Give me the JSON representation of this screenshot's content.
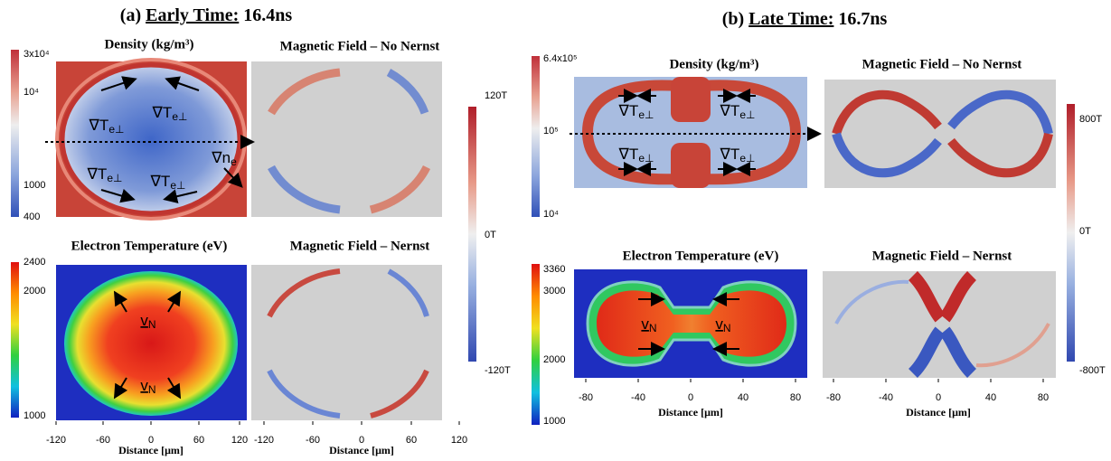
{
  "panel_a": {
    "label": "(a)",
    "heading": "Early Time:",
    "time": "16.4ns",
    "density": {
      "title": "Density (kg/m³)",
      "colorbar": [
        "3x10⁴",
        "10⁴",
        "1000",
        "400"
      ],
      "annotations": [
        {
          "base": "∇T",
          "sub": "e⊥"
        },
        {
          "base": "∇T",
          "sub": "e⊥"
        },
        {
          "base": "∇T",
          "sub": "e⊥"
        },
        {
          "base": "∇T",
          "sub": "e⊥"
        },
        {
          "base": "∇n",
          "sub": "e"
        }
      ]
    },
    "field_no_nernst": {
      "title": "Magnetic Field – No Nernst"
    },
    "field_colorbar": [
      "120T",
      "0T",
      "-120T"
    ],
    "temperature": {
      "title": "Electron Temperature (eV)",
      "colorbar": [
        "2400",
        "2000",
        "1000"
      ],
      "annotations": [
        {
          "base": "v",
          "sub": "N"
        },
        {
          "base": "v",
          "sub": "N"
        }
      ]
    },
    "field_nernst": {
      "title": "Magnetic Field – Nernst"
    },
    "x_ticks": [
      "-120",
      "-60",
      "0",
      "60",
      "120"
    ],
    "x_label": "Distance [μm]"
  },
  "panel_b": {
    "label": "(b)",
    "heading": "Late Time:",
    "time": "16.7ns",
    "density": {
      "title": "Density (kg/m³)",
      "colorbar": [
        "6.4x10⁵",
        "10⁵",
        "10⁴"
      ],
      "annotations": [
        {
          "base": "∇T",
          "sub": "e⊥"
        },
        {
          "base": "∇T",
          "sub": "e⊥"
        },
        {
          "base": "∇T",
          "sub": "e⊥"
        },
        {
          "base": "∇T",
          "sub": "e⊥"
        }
      ]
    },
    "field_no_nernst": {
      "title": "Magnetic Field – No Nernst"
    },
    "field_colorbar": [
      "800T",
      "0T",
      "-800T"
    ],
    "temperature": {
      "title": "Electron Temperature (eV)",
      "colorbar": [
        "3360",
        "3000",
        "2000",
        "1000"
      ],
      "annotations": [
        {
          "base": "v",
          "sub": "N"
        },
        {
          "base": "v",
          "sub": "N"
        }
      ]
    },
    "field_nernst": {
      "title": "Magnetic Field – Nernst"
    },
    "x_ticks": [
      "-80",
      "-40",
      "0",
      "40",
      "80"
    ],
    "x_label": "Distance [μm]"
  }
}
